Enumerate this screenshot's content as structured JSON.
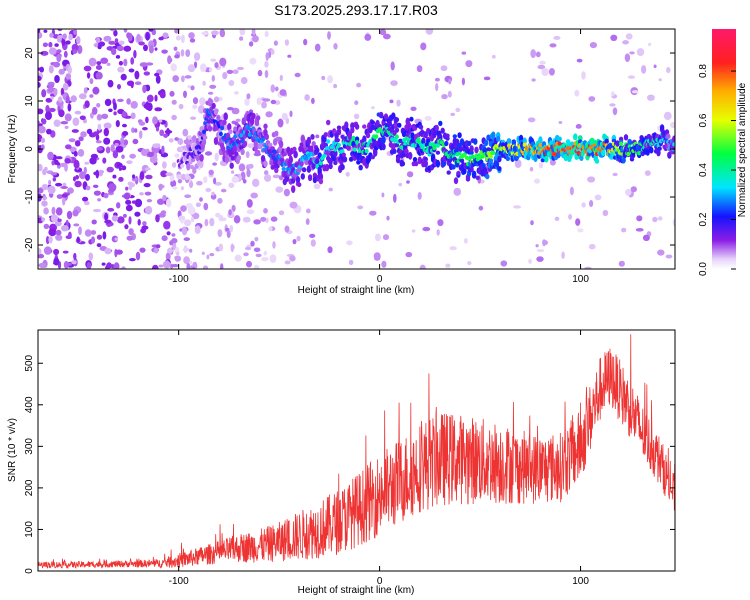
{
  "figure_title": "S173.2025.293.17.17.R03",
  "chart_data": [
    {
      "type": "heatmap",
      "xlabel": "Height of straight line (km)",
      "ylabel": "Frequency (Hz)",
      "xlim": [
        -170,
        147
      ],
      "ylim": [
        -25,
        25
      ],
      "xticks": [
        -100,
        0,
        100
      ],
      "yticks": [
        -20,
        -10,
        0,
        10,
        20
      ],
      "colorbar": {
        "label": "Normalized spectral amplitude",
        "range": [
          0.0,
          0.97
        ],
        "ticks": [
          0.0,
          0.2,
          0.4,
          0.6,
          0.8
        ],
        "tick_labels": [
          "0.0",
          "0.2",
          "0.4",
          "0.6",
          "0.8"
        ],
        "colormap": "rainbow (white-violet-blue-cyan-green-yellow-orange-red-magenta)"
      },
      "ridge": {
        "description": "Dominant spectral ridge: frequency (Hz) vs height (km) with normalized amplitude",
        "x": [
          -100,
          -90,
          -85,
          -80,
          -75,
          -70,
          -65,
          -60,
          -55,
          -50,
          -45,
          -40,
          -35,
          -30,
          -25,
          -20,
          -15,
          -10,
          -5,
          0,
          5,
          10,
          15,
          20,
          25,
          30,
          35,
          40,
          45,
          50,
          55,
          60,
          65,
          70,
          80,
          90,
          100,
          110,
          120,
          130,
          140,
          145
        ],
        "freq": [
          -3,
          0,
          8,
          5,
          1,
          2,
          4,
          2,
          0,
          -2,
          -5,
          -4,
          -1,
          -3,
          1,
          0,
          2,
          0,
          1,
          5,
          3,
          1,
          2,
          1,
          0,
          1,
          -1,
          -2,
          -2,
          -1,
          -1,
          0,
          0,
          0,
          0,
          0,
          0,
          0,
          0,
          0,
          2,
          1
        ],
        "amp": [
          0.15,
          0.2,
          0.3,
          0.25,
          0.3,
          0.3,
          0.35,
          0.3,
          0.3,
          0.3,
          0.35,
          0.35,
          0.35,
          0.4,
          0.4,
          0.4,
          0.45,
          0.45,
          0.45,
          0.5,
          0.45,
          0.45,
          0.45,
          0.45,
          0.45,
          0.5,
          0.5,
          0.5,
          0.55,
          0.55,
          0.6,
          0.65,
          0.7,
          0.75,
          0.85,
          0.9,
          0.92,
          0.9,
          0.6,
          0.5,
          0.4,
          0.35
        ]
      }
    },
    {
      "type": "line",
      "xlabel": "Height of straight line (km)",
      "ylabel": "SNR (10 * v/v)",
      "xlim": [
        -170,
        147
      ],
      "ylim": [
        0,
        580
      ],
      "xticks": [
        -100,
        0,
        100
      ],
      "yticks": [
        0,
        100,
        200,
        300,
        400,
        500
      ],
      "color": "#ee3333",
      "envelope": {
        "description": "Approximate running center (y) and fluctuation amplitude (spread) of the noisy SNR trace",
        "x": [
          -170,
          -150,
          -130,
          -110,
          -100,
          -90,
          -80,
          -70,
          -60,
          -50,
          -40,
          -30,
          -20,
          -10,
          0,
          10,
          20,
          30,
          40,
          50,
          60,
          70,
          80,
          90,
          100,
          105,
          110,
          115,
          120,
          125,
          130,
          140,
          147
        ],
        "y": [
          15,
          15,
          17,
          18,
          25,
          35,
          45,
          55,
          60,
          70,
          85,
          100,
          120,
          150,
          185,
          215,
          250,
          270,
          270,
          265,
          260,
          250,
          245,
          250,
          300,
          370,
          440,
          470,
          430,
          390,
          340,
          260,
          180
        ],
        "spread": [
          8,
          8,
          8,
          10,
          18,
          22,
          28,
          35,
          40,
          48,
          60,
          70,
          80,
          90,
          100,
          105,
          110,
          115,
          110,
          105,
          100,
          90,
          85,
          85,
          90,
          85,
          80,
          75,
          75,
          75,
          70,
          60,
          50
        ]
      }
    }
  ]
}
